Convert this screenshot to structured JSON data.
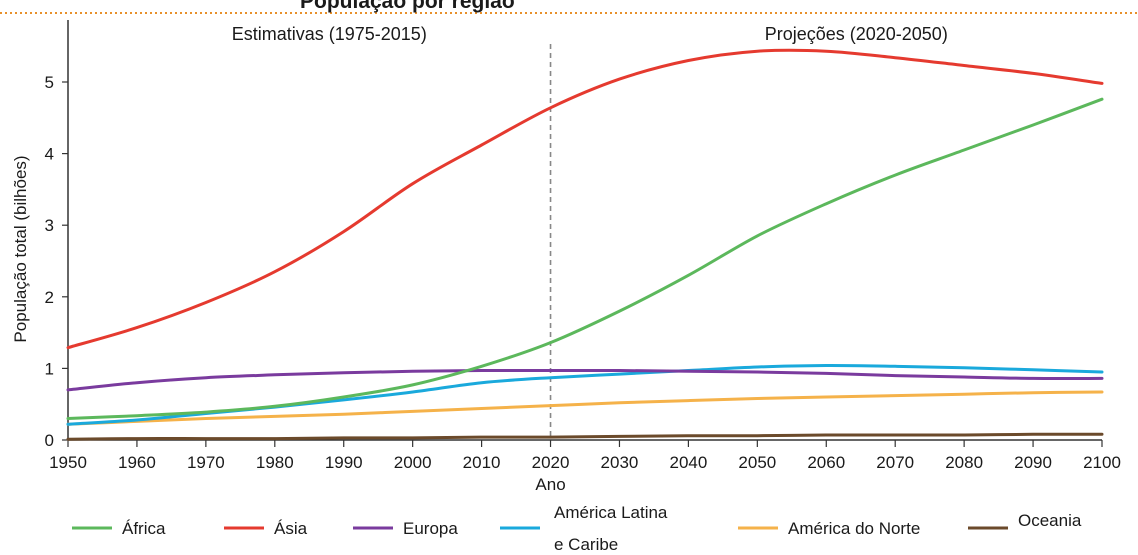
{
  "chart_data": {
    "type": "line",
    "title": "População por região",
    "xlabel": "Ano",
    "ylabel": "População total (bilhões)",
    "xlim": [
      1950,
      2100
    ],
    "ylim": [
      0,
      5.4
    ],
    "x_ticks": [
      1950,
      1960,
      1970,
      1980,
      1990,
      2000,
      2010,
      2020,
      2030,
      2040,
      2050,
      2060,
      2070,
      2080,
      2090,
      2100
    ],
    "y_ticks": [
      0,
      1,
      2,
      3,
      4,
      5
    ],
    "grid": false,
    "legend_position": "bottom",
    "divider_x": 2020,
    "section_labels": [
      "Estimativas (1975-2015)",
      "Projeções (2020-2050)"
    ],
    "series": [
      {
        "name": "África",
        "color": "#5cb85c",
        "x": [
          1950,
          1960,
          1970,
          1980,
          1990,
          2000,
          2010,
          2020,
          2030,
          2040,
          2050,
          2060,
          2070,
          2080,
          2090,
          2100
        ],
        "y": [
          0.3,
          0.34,
          0.39,
          0.47,
          0.6,
          0.77,
          1.03,
          1.36,
          1.8,
          2.3,
          2.85,
          3.3,
          3.7,
          4.05,
          4.4,
          4.76
        ]
      },
      {
        "name": "Ásia",
        "color": "#e53a2f",
        "x": [
          1950,
          1960,
          1970,
          1980,
          1990,
          2000,
          2010,
          2020,
          2030,
          2040,
          2050,
          2060,
          2070,
          2080,
          2090,
          2100
        ],
        "y": [
          1.29,
          1.57,
          1.92,
          2.35,
          2.91,
          3.58,
          4.12,
          4.64,
          5.04,
          5.3,
          5.43,
          5.43,
          5.34,
          5.23,
          5.12,
          4.98
        ]
      },
      {
        "name": "Europa",
        "color": "#7a3b9e",
        "x": [
          1950,
          1960,
          1970,
          1980,
          1990,
          2000,
          2010,
          2020,
          2030,
          2040,
          2050,
          2060,
          2070,
          2080,
          2090,
          2100
        ],
        "y": [
          0.7,
          0.8,
          0.87,
          0.91,
          0.94,
          0.96,
          0.97,
          0.97,
          0.97,
          0.96,
          0.95,
          0.93,
          0.9,
          0.88,
          0.86,
          0.86
        ]
      },
      {
        "name": "América Latina e Caribe",
        "color": "#1aa9dc",
        "x": [
          1950,
          1960,
          1970,
          1980,
          1990,
          2000,
          2010,
          2020,
          2030,
          2040,
          2050,
          2060,
          2070,
          2080,
          2090,
          2100
        ],
        "y": [
          0.22,
          0.28,
          0.37,
          0.46,
          0.56,
          0.67,
          0.8,
          0.87,
          0.92,
          0.97,
          1.02,
          1.04,
          1.03,
          1.01,
          0.98,
          0.95
        ]
      },
      {
        "name": "América do Norte",
        "color": "#f5b24a",
        "x": [
          1950,
          1960,
          1970,
          1980,
          1990,
          2000,
          2010,
          2020,
          2030,
          2040,
          2050,
          2060,
          2070,
          2080,
          2090,
          2100
        ],
        "y": [
          0.22,
          0.26,
          0.3,
          0.33,
          0.36,
          0.4,
          0.44,
          0.48,
          0.52,
          0.55,
          0.58,
          0.6,
          0.62,
          0.64,
          0.66,
          0.67
        ]
      },
      {
        "name": "Oceania",
        "color": "#6b4a2b",
        "x": [
          1950,
          1960,
          1970,
          1980,
          1990,
          2000,
          2010,
          2020,
          2030,
          2040,
          2050,
          2060,
          2070,
          2080,
          2090,
          2100
        ],
        "y": [
          0.01,
          0.02,
          0.02,
          0.02,
          0.03,
          0.03,
          0.04,
          0.04,
          0.05,
          0.06,
          0.06,
          0.07,
          0.07,
          0.07,
          0.08,
          0.08
        ]
      }
    ]
  },
  "legend": {
    "items": [
      {
        "lines": [
          "África"
        ],
        "color": "#5cb85c"
      },
      {
        "lines": [
          "Ásia"
        ],
        "color": "#e53a2f"
      },
      {
        "lines": [
          "Europa"
        ],
        "color": "#7a3b9e"
      },
      {
        "lines": [
          "América Latina",
          "e Caribe"
        ],
        "color": "#1aa9dc"
      },
      {
        "lines": [
          "América do Norte"
        ],
        "color": "#f5b24a"
      },
      {
        "lines": [
          "Oceania"
        ],
        "color": "#6b4a2b"
      }
    ]
  },
  "colors": {
    "frame_dots": "#e8902a",
    "divider": "#888888",
    "axis": "#333333"
  }
}
